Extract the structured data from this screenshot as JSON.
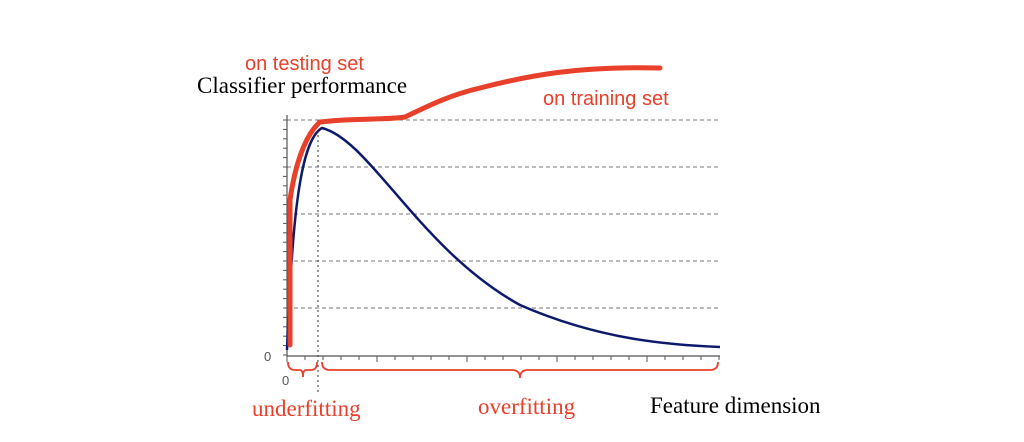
{
  "annotations": {
    "testing": "on testing set",
    "training": "on training set",
    "underfitting": "underfitting",
    "overfitting": "overfitting"
  },
  "axes": {
    "y_label": "Classifier performance",
    "x_label": "Feature dimension",
    "y_origin": "0",
    "x_origin": "0"
  }
}
